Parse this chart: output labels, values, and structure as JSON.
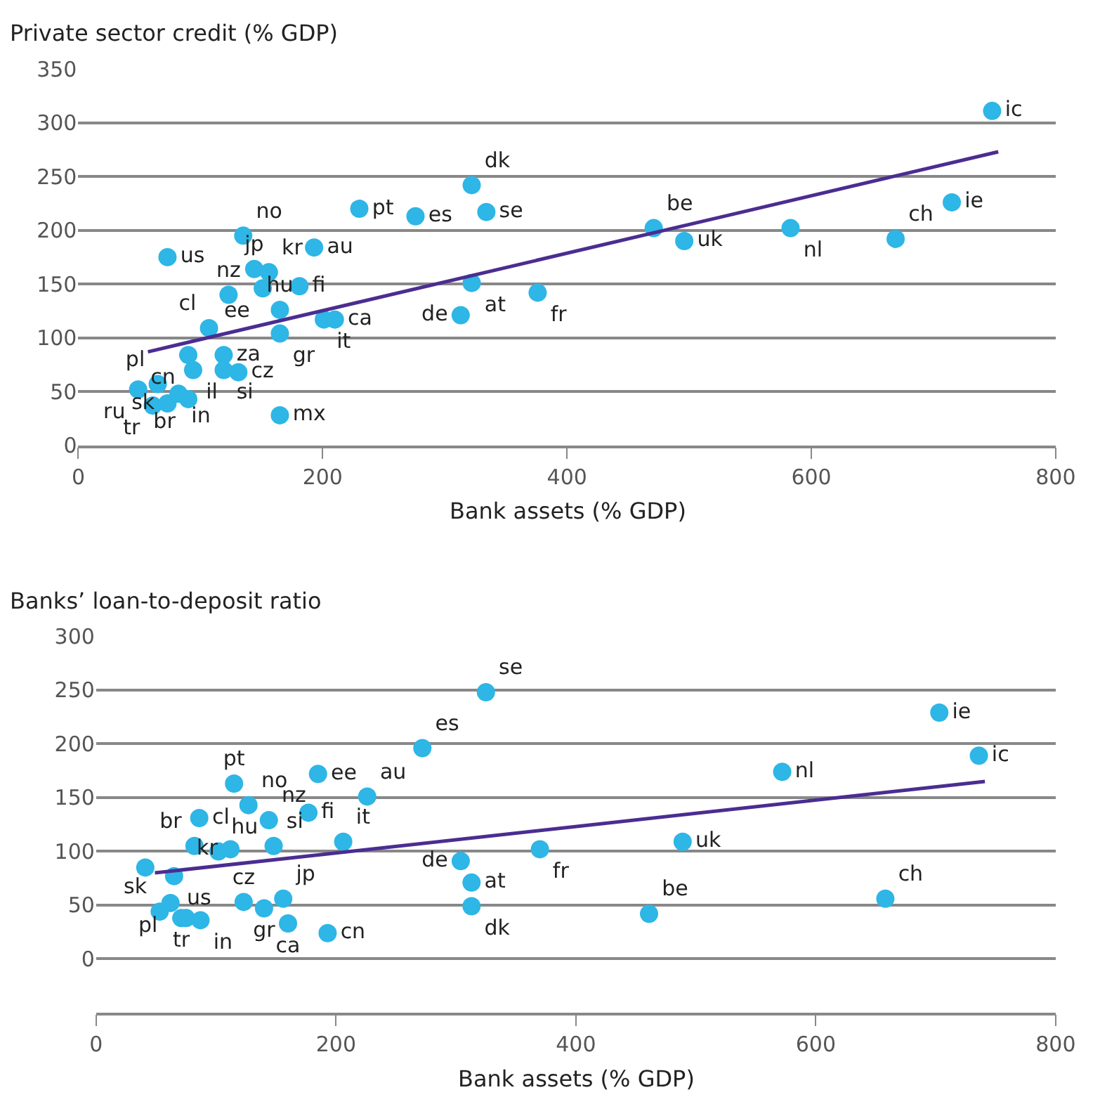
{
  "chart_data": [
    {
      "type": "scatter",
      "title": "Private sector credit (% GDP)",
      "xlabel": "Bank assets (% GDP)",
      "xlim": [
        0,
        800
      ],
      "xticks": [
        0,
        200,
        400,
        600,
        800
      ],
      "ylim": [
        0,
        350
      ],
      "yticks": [
        0,
        50,
        100,
        150,
        200,
        250,
        300,
        350
      ],
      "grid": "y",
      "series": [
        {
          "color": "#2db6e6",
          "marker": "circle",
          "x": [
            49,
            61,
            65,
            73,
            82,
            90,
            90,
            94,
            73,
            107,
            119,
            119,
            131,
            123,
            135,
            144,
            156,
            151,
            181,
            165,
            165,
            165,
            193,
            230,
            201,
            210,
            276,
            322,
            334,
            322,
            313,
            376,
            471,
            496,
            583,
            669,
            715,
            748
          ],
          "values": [
            52,
            37,
            57,
            39,
            48,
            43,
            84,
            70,
            175,
            109,
            84,
            70,
            68,
            140,
            195,
            164,
            161,
            146,
            148,
            126,
            104,
            28,
            184,
            220,
            117,
            117,
            213,
            242,
            217,
            151,
            121,
            142,
            202,
            190,
            202,
            192,
            226,
            311
          ],
          "value_labels": [
            "ru",
            "tr",
            "pl",
            "sk",
            "in",
            "br",
            "cn",
            "il",
            "us",
            "cl",
            "za",
            "si",
            "cz",
            "nz",
            "no",
            "jp",
            "kr",
            "ee",
            "fi",
            "hu",
            "gr",
            "mx",
            "au",
            "pt",
            "it",
            "ca",
            "es",
            "dk",
            "se",
            "at",
            "de",
            "fr",
            "be",
            "uk",
            "nl",
            "ch",
            "ie",
            "ic"
          ]
        },
        {
          "type": "line",
          "color": "#4b2d91",
          "x": [
            57,
            753
          ],
          "values": [
            87,
            273
          ]
        }
      ]
    },
    {
      "type": "scatter",
      "title": "Banks’ loan-to-deposit ratio",
      "xlabel": "Bank assets (% GDP)",
      "xlim": [
        0,
        800
      ],
      "xticks": [
        0,
        200,
        400,
        600,
        800
      ],
      "ylim": [
        -50,
        300
      ],
      "yticks": [
        0,
        50,
        100,
        150,
        200,
        250,
        300
      ],
      "grid": "y",
      "series": [
        {
          "color": "#2db6e6",
          "marker": "circle",
          "x": [
            41,
            65,
            53,
            62,
            71,
            75,
            87,
            86,
            82,
            102,
            112,
            115,
            127,
            144,
            148,
            123,
            140,
            156,
            160,
            193,
            185,
            177,
            206,
            226,
            272,
            325,
            304,
            313,
            313,
            370,
            461,
            489,
            572,
            658,
            703,
            736
          ],
          "values": [
            85,
            77,
            44,
            52,
            38,
            38,
            36,
            131,
            105,
            100,
            102,
            163,
            143,
            129,
            105,
            53,
            47,
            56,
            33,
            24,
            172,
            136,
            109,
            151,
            196,
            248,
            91,
            71,
            49,
            102,
            42,
            109,
            174,
            56,
            229,
            189
          ],
          "value_labels": [
            null,
            "us",
            "sk",
            "pl",
            "tr",
            null,
            "in",
            "cl",
            "br",
            "hu",
            "kr",
            "pt",
            "no",
            "nz",
            "si",
            "cz",
            "gr",
            "jp",
            "ca",
            "cn",
            "ee",
            "fi",
            "it",
            "au",
            "es",
            "se",
            "de",
            "at",
            "dk",
            "fr",
            "be",
            "uk",
            "nl",
            "ch",
            "ie",
            "ic"
          ]
        },
        {
          "type": "line",
          "color": "#4b2d91",
          "x": [
            49,
            741
          ],
          "values": [
            80,
            165
          ]
        }
      ]
    }
  ]
}
